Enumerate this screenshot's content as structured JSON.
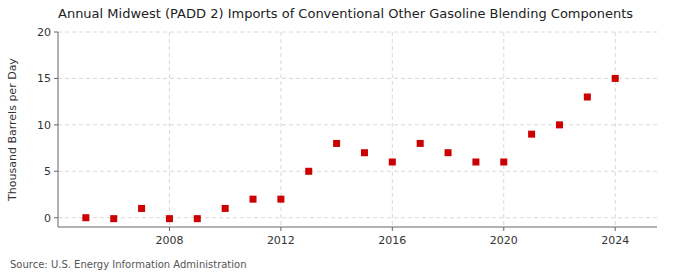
{
  "chart_data": {
    "type": "scatter",
    "title": "Annual Midwest (PADD 2) Imports of Conventional Other Gasoline Blending Components",
    "y_label": "Thousand Barrels per Day",
    "source": "Source: U.S. Energy Information Administration",
    "x": [
      2005,
      2006,
      2007,
      2008,
      2009,
      2010,
      2011,
      2012,
      2013,
      2014,
      2015,
      2016,
      2017,
      2018,
      2019,
      2020,
      2021,
      2022,
      2023,
      2024
    ],
    "values": [
      0.0,
      -0.1,
      1.0,
      -0.1,
      -0.1,
      1.0,
      2.0,
      2.0,
      5.0,
      8.0,
      7.0,
      6.0,
      8.0,
      7.0,
      6.0,
      6.0,
      9.0,
      10.0,
      13.0,
      15.0
    ],
    "color": "#cc0000",
    "marker": "square",
    "xlim": [
      2004.0,
      2025.5
    ],
    "xticks": [
      2008,
      2012,
      2016,
      2020,
      2024
    ],
    "ylim": [
      -1,
      20
    ],
    "yticks": [
      0,
      5,
      10,
      15,
      20
    ],
    "grid": true
  }
}
